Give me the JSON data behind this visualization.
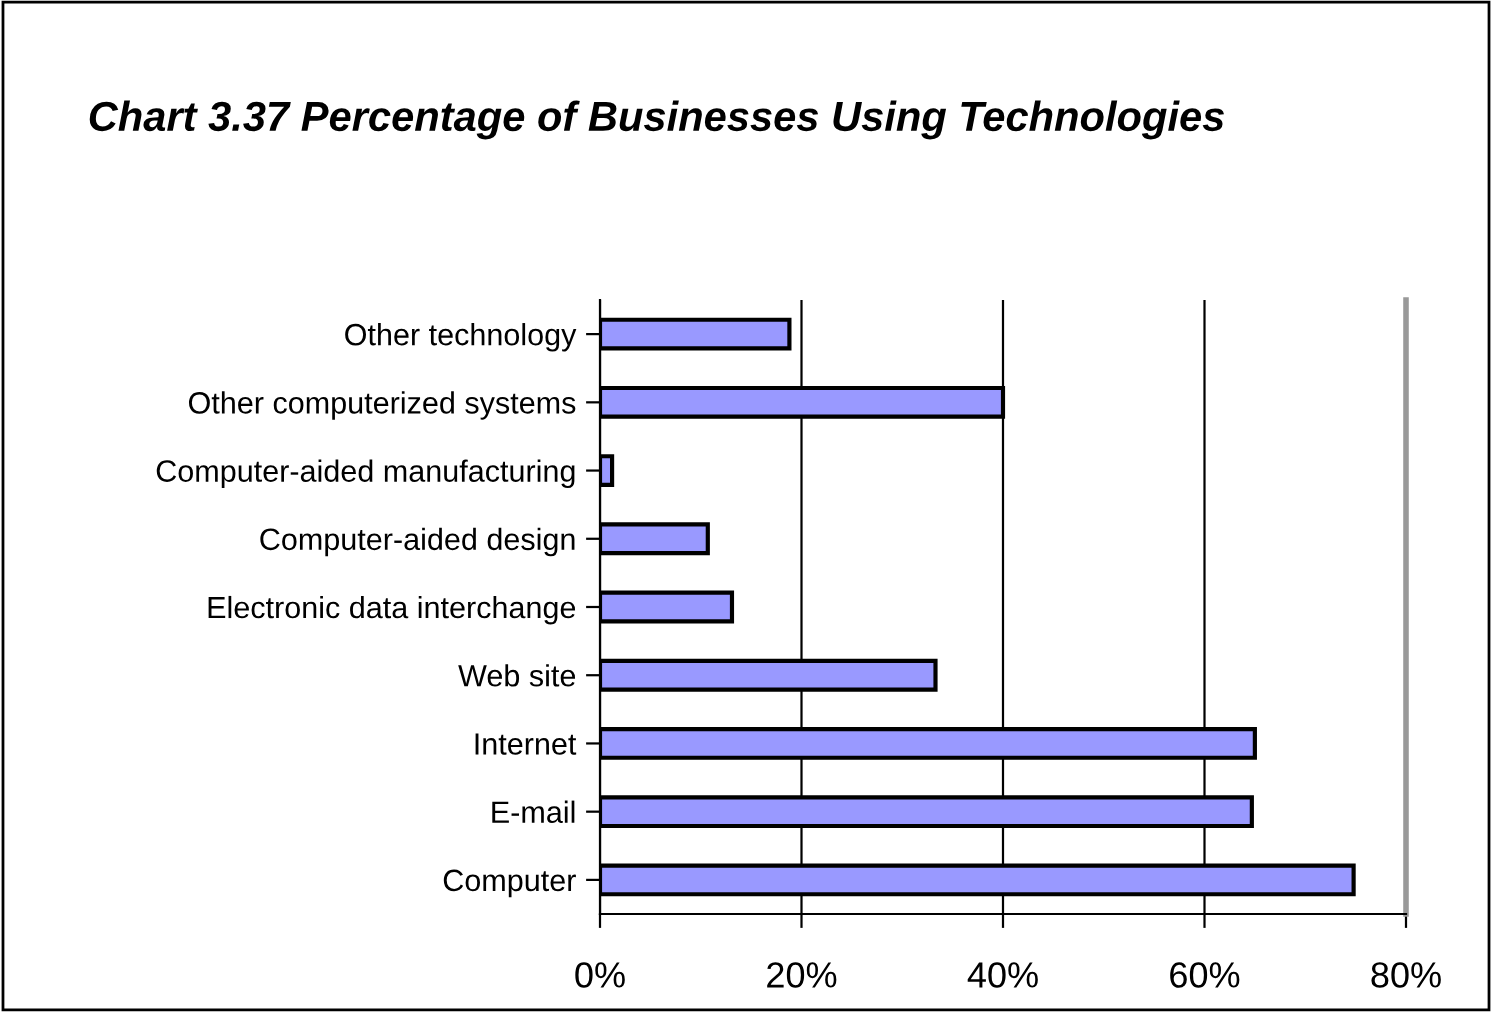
{
  "chart_data": {
    "type": "bar",
    "orientation": "horizontal",
    "title": "Chart 3.37 Percentage of Businesses Using Technologies",
    "categories": [
      "Other technology",
      "Other computerized systems",
      "Computer-aided manufacturing",
      "Computer-aided design",
      "Electronic data interchange",
      "Web site",
      "Internet",
      "E-mail",
      "Computer"
    ],
    "values": [
      18.8,
      40,
      1.2,
      10.7,
      13.1,
      33.3,
      65,
      64.7,
      74.8
    ],
    "color": "#9999ff",
    "xlim": [
      0,
      80
    ],
    "xticks": [
      {
        "value": 0,
        "label": "0%"
      },
      {
        "value": 20,
        "label": "20%"
      },
      {
        "value": 40,
        "label": "40%"
      },
      {
        "value": 60,
        "label": "60%"
      },
      {
        "value": 80,
        "label": "80%"
      }
    ],
    "grid": "x",
    "legend": false
  }
}
